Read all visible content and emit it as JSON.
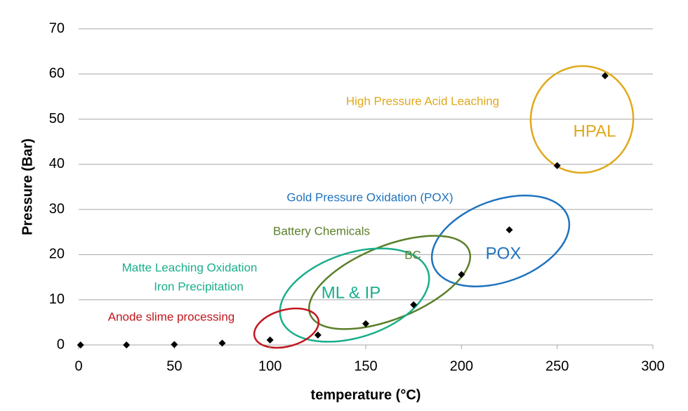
{
  "chart_data": {
    "type": "scatter",
    "x_label": "temperature (°C)",
    "y_label": "Pressure (Bar)",
    "x": [
      1,
      25,
      50,
      75,
      100,
      125,
      150,
      175,
      200,
      225,
      250,
      275
    ],
    "values": [
      0,
      0,
      0.1,
      0.4,
      1.1,
      2.2,
      4.7,
      8.9,
      15.6,
      25.5,
      39.7,
      59.6
    ],
    "color": "#000000",
    "xlim": [
      0,
      300
    ],
    "xticks": [
      0,
      50,
      100,
      150,
      200,
      250,
      300
    ],
    "ylim": [
      0,
      70
    ],
    "yticks": [
      0,
      10,
      20,
      30,
      40,
      50,
      60,
      70
    ],
    "grid": true,
    "annotations": [
      {
        "text": "High Pressure Acid Leaching",
        "color": "#E0A91B"
      },
      {
        "text": "HPAL",
        "color": "#E0A91B"
      },
      {
        "text": "Gold Pressure Oxidation (POX)",
        "color": "#1F73BE"
      },
      {
        "text": "POX",
        "color": "#1F73BE"
      },
      {
        "text": "Battery Chemicals",
        "color": "#5B7F2A"
      },
      {
        "text": "BC",
        "color": "#5B7F2A"
      },
      {
        "text": "Matte Leaching Oxidation",
        "color": "#1AAE8C"
      },
      {
        "text": "Iron Precipitation",
        "color": "#1AAE8C"
      },
      {
        "text": "ML & IP",
        "color": "#1AAE8C"
      },
      {
        "text": "Anode slime processing",
        "color": "#C0171E"
      }
    ]
  }
}
